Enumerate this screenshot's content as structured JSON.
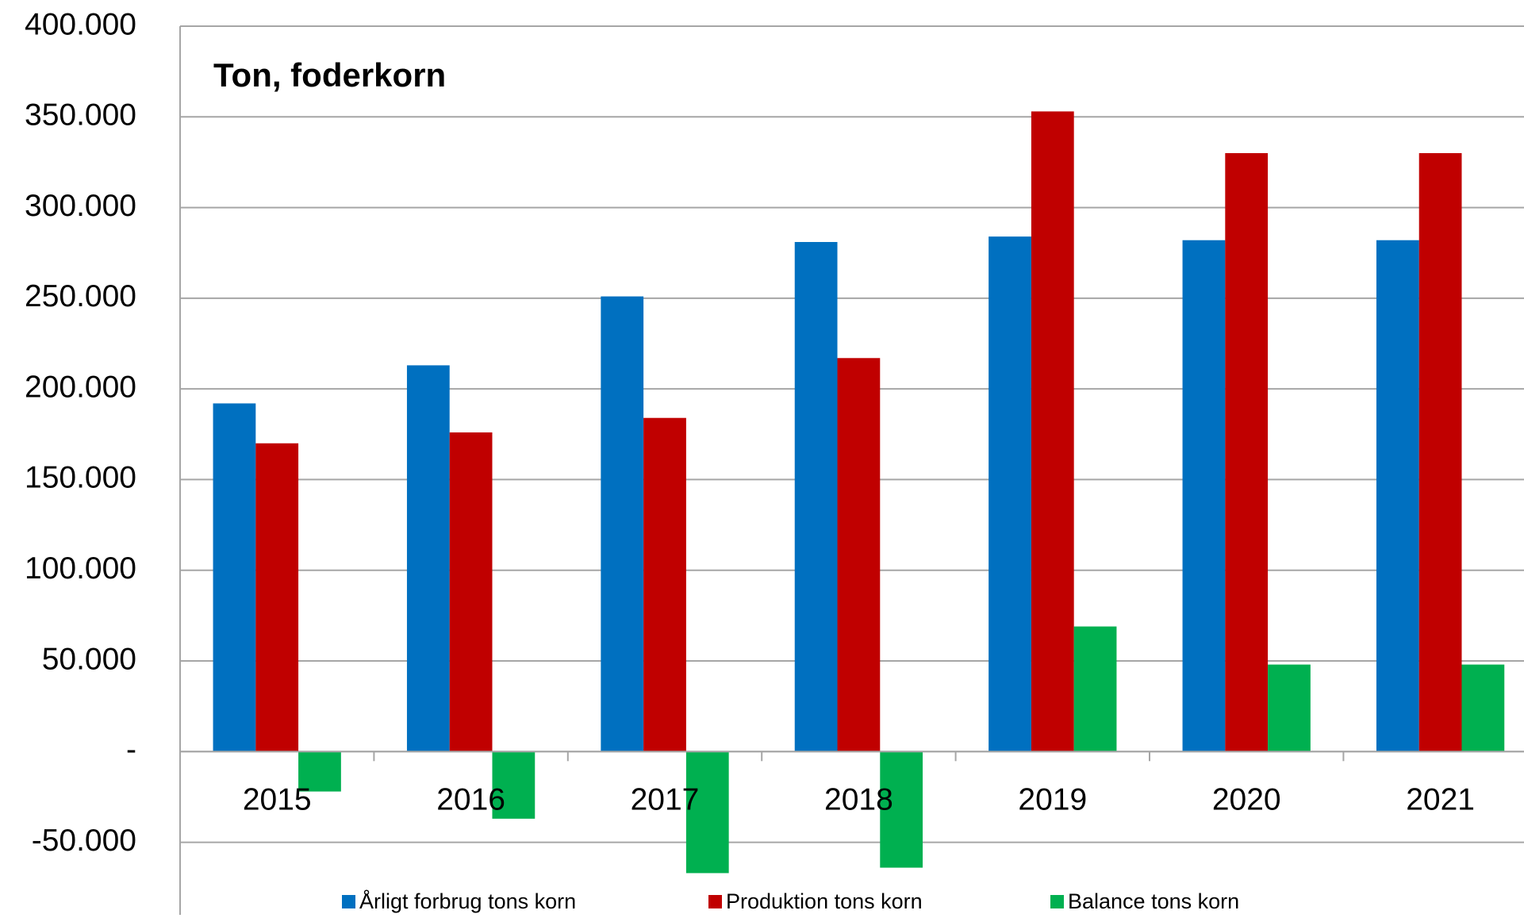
{
  "chart_data": {
    "type": "bar",
    "title": "Ton,  foderkorn",
    "categories": [
      "2015",
      "2016",
      "2017",
      "2018",
      "2019",
      "2020",
      "2021"
    ],
    "series": [
      {
        "name": "Årligt forbrug tons korn",
        "color": "#0070c0",
        "values": [
          192000,
          213000,
          251000,
          281000,
          284000,
          282000,
          282000
        ]
      },
      {
        "name": "Produktion tons korn",
        "color": "#c00000",
        "values": [
          170000,
          176000,
          184000,
          217000,
          353000,
          330000,
          330000
        ]
      },
      {
        "name": "Balance tons korn",
        "color": "#00b050",
        "values": [
          -22000,
          -37000,
          -67000,
          -64000,
          69000,
          48000,
          48000
        ]
      }
    ],
    "ylim": [
      -90000,
      400000
    ],
    "yticks": [
      {
        "value": -50000,
        "label": "-50.000"
      },
      {
        "value": 0,
        "label": "-"
      },
      {
        "value": 50000,
        "label": "50.000"
      },
      {
        "value": 100000,
        "label": "100.000"
      },
      {
        "value": 150000,
        "label": "150.000"
      },
      {
        "value": 200000,
        "label": "200.000"
      },
      {
        "value": 250000,
        "label": "250.000"
      },
      {
        "value": 300000,
        "label": "300.000"
      },
      {
        "value": 350000,
        "label": "350.000"
      },
      {
        "value": 400000,
        "label": "400.000"
      }
    ],
    "grid": true,
    "legend": "bottom"
  }
}
